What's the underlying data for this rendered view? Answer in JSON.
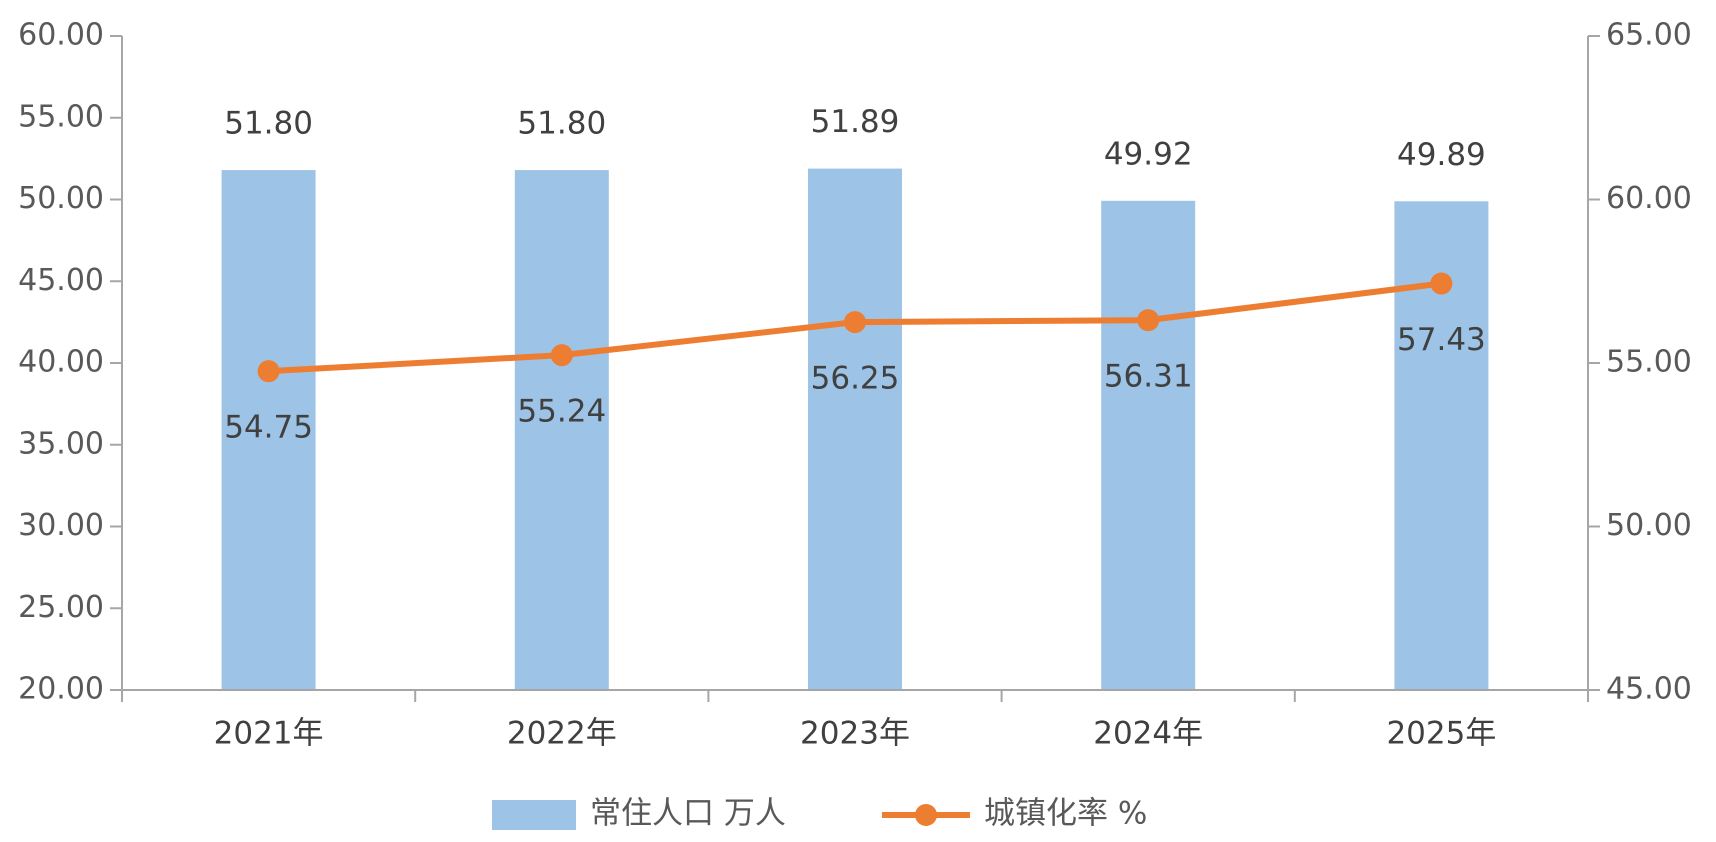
{
  "chart_data": {
    "type": "bar",
    "categories": [
      "2021年",
      "2022年",
      "2023年",
      "2024年",
      "2025年"
    ],
    "series": [
      {
        "name": "常住人口 万人",
        "type": "bar",
        "axis": "left",
        "color": "#9DC3E6",
        "values": [
          51.8,
          51.8,
          51.89,
          49.92,
          49.89
        ],
        "labels": [
          "51.80",
          "51.80",
          "51.89",
          "49.92",
          "49.89"
        ]
      },
      {
        "name": "城镇化率 %",
        "type": "line",
        "axis": "right",
        "color": "#ED7D31",
        "values": [
          54.75,
          55.24,
          56.25,
          56.31,
          57.43
        ],
        "labels": [
          "54.75",
          "55.24",
          "56.25",
          "56.31",
          "57.43"
        ]
      }
    ],
    "left_axis": {
      "ylim": [
        20,
        60
      ],
      "ticks": [
        "20.00",
        "25.00",
        "30.00",
        "35.00",
        "40.00",
        "45.00",
        "50.00",
        "55.00",
        "60.00"
      ]
    },
    "right_axis": {
      "ylim": [
        45,
        65
      ],
      "ticks": [
        "45.00",
        "50.00",
        "55.00",
        "60.00",
        "65.00"
      ]
    },
    "legend_position": "bottom",
    "grid": false
  }
}
